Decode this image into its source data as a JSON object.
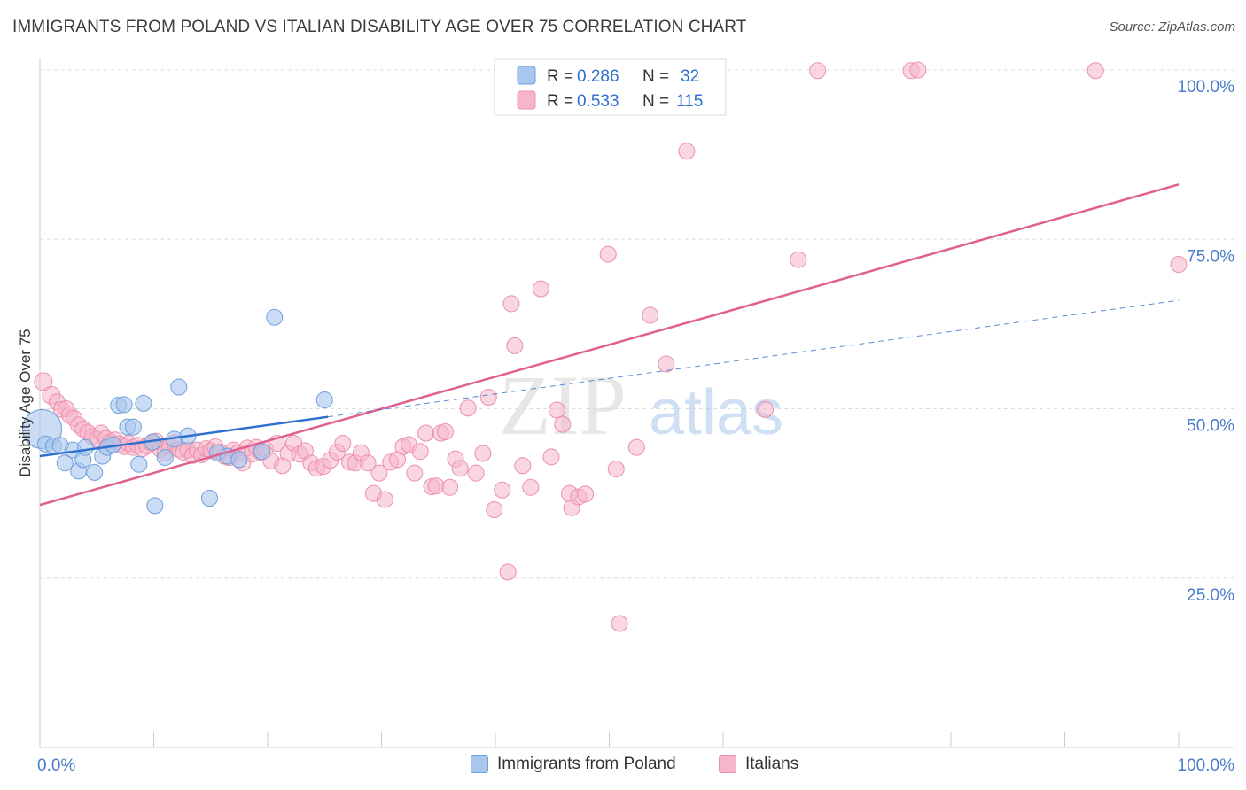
{
  "title": "IMMIGRANTS FROM POLAND VS ITALIAN DISABILITY AGE OVER 75 CORRELATION CHART",
  "source": "Source: ZipAtlas.com",
  "watermark": {
    "zip": "ZIP",
    "atlas": "atlas"
  },
  "colors": {
    "blue_fill": "#a9c7ee",
    "blue_stroke": "#6f9fdc",
    "blue_line": "#2f6fce",
    "pink_fill": "#f6b5c9",
    "pink_stroke": "#ec8fae",
    "pink_line": "#e0608e",
    "tick_label": "#4a7cc9",
    "grid": "#dddddd"
  },
  "legend_top": [
    {
      "r_label": "R =",
      "r_value": "0.286",
      "n_label": "N =",
      "n_value": "32"
    },
    {
      "r_label": "R =",
      "r_value": "0.533",
      "n_label": "N =",
      "n_value": "115"
    }
  ],
  "chart_data": {
    "type": "scatter",
    "title": "IMMIGRANTS FROM POLAND VS ITALIAN DISABILITY AGE OVER 75 CORRELATION CHART",
    "xlabel": "",
    "ylabel": "Disability Age Over 75",
    "xlim": [
      0,
      100
    ],
    "ylim": [
      0,
      102
    ],
    "x_tick_labels": [
      "0.0%",
      "100.0%"
    ],
    "y_tick_labels": [
      "100.0%",
      "75.0%",
      "50.0%",
      "25.0%"
    ],
    "y_tick_values": [
      100,
      75,
      50,
      25
    ],
    "legend": [
      "Immigrants from Poland",
      "Italians"
    ],
    "series": [
      {
        "name": "Immigrants from Poland",
        "r": 0.286,
        "n": 32,
        "trend_solid": {
          "x": [
            0,
            25.3
          ],
          "y": [
            43.0,
            48.8
          ]
        },
        "trend_dashed": {
          "x": [
            25.3,
            100
          ],
          "y": [
            48.8,
            66.0
          ]
        },
        "points": [
          [
            0.2,
            47.0,
            22
          ],
          [
            0.5,
            44.8,
            9
          ],
          [
            1.2,
            44.5,
            9
          ],
          [
            1.8,
            44.6,
            9
          ],
          [
            2.2,
            42.0,
            9
          ],
          [
            2.9,
            43.9,
            9
          ],
          [
            3.4,
            40.8,
            9
          ],
          [
            3.8,
            42.5,
            9
          ],
          [
            4.0,
            44.3,
            9
          ],
          [
            4.8,
            40.6,
            9
          ],
          [
            5.5,
            43.0,
            9
          ],
          [
            5.9,
            44.3,
            9
          ],
          [
            6.4,
            44.7,
            9
          ],
          [
            6.9,
            50.5,
            9
          ],
          [
            7.4,
            50.6,
            9
          ],
          [
            7.7,
            47.3,
            9
          ],
          [
            8.2,
            47.3,
            9
          ],
          [
            8.7,
            41.8,
            9
          ],
          [
            9.1,
            50.8,
            9
          ],
          [
            9.9,
            45.1,
            9
          ],
          [
            10.1,
            35.7,
            9
          ],
          [
            11.0,
            42.8,
            9
          ],
          [
            11.8,
            45.5,
            9
          ],
          [
            12.2,
            53.2,
            9
          ],
          [
            13.0,
            46.0,
            9
          ],
          [
            14.9,
            36.8,
            9
          ],
          [
            15.6,
            43.5,
            9
          ],
          [
            16.5,
            43.0,
            9
          ],
          [
            17.5,
            42.5,
            9
          ],
          [
            19.5,
            43.7,
            9
          ],
          [
            20.6,
            63.5,
            9
          ],
          [
            25.0,
            51.3,
            9
          ]
        ]
      },
      {
        "name": "Italians",
        "r": 0.533,
        "n": 115,
        "trend": {
          "x": [
            0,
            100
          ],
          "y": [
            35.8,
            83.1
          ]
        },
        "points": [
          [
            0.3,
            54.0,
            10
          ],
          [
            1.0,
            52.0,
            10
          ],
          [
            1.5,
            51.0,
            9
          ],
          [
            1.9,
            49.9,
            9
          ],
          [
            2.3,
            50.0,
            9
          ],
          [
            2.6,
            49.1,
            9
          ],
          [
            3.0,
            48.6,
            9
          ],
          [
            3.4,
            47.6,
            9
          ],
          [
            3.8,
            47.0,
            9
          ],
          [
            4.2,
            46.5,
            9
          ],
          [
            4.6,
            45.9,
            9
          ],
          [
            5.0,
            45.5,
            9
          ],
          [
            5.4,
            46.4,
            9
          ],
          [
            5.8,
            45.6,
            9
          ],
          [
            6.2,
            45.1,
            9
          ],
          [
            6.6,
            45.4,
            9
          ],
          [
            7.0,
            44.8,
            9
          ],
          [
            7.4,
            44.4,
            9
          ],
          [
            7.8,
            44.9,
            9
          ],
          [
            8.2,
            44.3,
            9
          ],
          [
            8.6,
            44.6,
            9
          ],
          [
            9.0,
            44.1,
            9
          ],
          [
            9.4,
            44.5,
            9
          ],
          [
            9.8,
            44.9,
            9
          ],
          [
            10.2,
            45.2,
            9
          ],
          [
            10.6,
            44.0,
            9
          ],
          [
            11.0,
            43.5,
            9
          ],
          [
            11.4,
            44.4,
            9
          ],
          [
            11.8,
            45.0,
            9
          ],
          [
            12.2,
            44.0,
            9
          ],
          [
            12.6,
            43.6,
            9
          ],
          [
            13.0,
            43.9,
            9
          ],
          [
            13.4,
            43.1,
            9
          ],
          [
            13.8,
            43.9,
            9
          ],
          [
            14.2,
            43.2,
            9
          ],
          [
            14.6,
            44.1,
            9
          ],
          [
            15.0,
            43.8,
            9
          ],
          [
            15.4,
            44.4,
            9
          ],
          [
            15.8,
            43.6,
            9
          ],
          [
            16.2,
            43.0,
            9
          ],
          [
            16.6,
            42.8,
            9
          ],
          [
            17.0,
            43.9,
            9
          ],
          [
            17.4,
            43.5,
            9
          ],
          [
            17.8,
            42.0,
            9
          ],
          [
            18.2,
            44.2,
            9
          ],
          [
            18.6,
            43.3,
            9
          ],
          [
            19.0,
            44.3,
            9
          ],
          [
            19.4,
            43.6,
            9
          ],
          [
            19.8,
            44.0,
            9
          ],
          [
            20.3,
            42.3,
            9
          ],
          [
            20.8,
            44.9,
            9
          ],
          [
            21.3,
            41.6,
            9
          ],
          [
            21.8,
            43.4,
            9
          ],
          [
            22.3,
            44.9,
            9
          ],
          [
            22.8,
            43.3,
            9
          ],
          [
            23.3,
            43.8,
            9
          ],
          [
            23.8,
            42.0,
            9
          ],
          [
            24.3,
            41.2,
            9
          ],
          [
            24.9,
            41.5,
            9
          ],
          [
            25.5,
            42.4,
            9
          ],
          [
            26.1,
            43.6,
            9
          ],
          [
            26.6,
            44.9,
            9
          ],
          [
            27.2,
            42.1,
            9
          ],
          [
            27.7,
            42.0,
            9
          ],
          [
            28.2,
            43.5,
            9
          ],
          [
            28.8,
            42.0,
            9
          ],
          [
            29.3,
            37.5,
            9
          ],
          [
            29.8,
            40.5,
            9
          ],
          [
            30.3,
            36.6,
            9
          ],
          [
            30.8,
            42.1,
            9
          ],
          [
            31.4,
            42.5,
            9
          ],
          [
            31.9,
            44.4,
            9
          ],
          [
            32.4,
            44.7,
            9
          ],
          [
            32.9,
            40.5,
            9
          ],
          [
            33.4,
            43.7,
            9
          ],
          [
            33.9,
            46.4,
            9
          ],
          [
            34.4,
            38.5,
            9
          ],
          [
            34.8,
            38.6,
            9
          ],
          [
            35.2,
            46.4,
            9
          ],
          [
            35.6,
            46.6,
            9
          ],
          [
            36.0,
            38.4,
            9
          ],
          [
            36.5,
            42.6,
            9
          ],
          [
            36.9,
            41.2,
            9
          ],
          [
            37.6,
            50.1,
            9
          ],
          [
            38.3,
            40.5,
            9
          ],
          [
            38.9,
            43.4,
            9
          ],
          [
            39.4,
            51.7,
            9
          ],
          [
            39.9,
            35.1,
            9
          ],
          [
            40.6,
            38.0,
            9
          ],
          [
            41.1,
            25.9,
            9
          ],
          [
            41.4,
            65.5,
            9
          ],
          [
            41.7,
            59.3,
            9
          ],
          [
            42.4,
            41.6,
            9
          ],
          [
            43.1,
            38.4,
            9
          ],
          [
            44.0,
            67.7,
            9
          ],
          [
            44.9,
            42.9,
            9
          ],
          [
            45.4,
            49.8,
            9
          ],
          [
            45.9,
            47.7,
            9
          ],
          [
            46.5,
            37.5,
            9
          ],
          [
            46.7,
            35.4,
            9
          ],
          [
            47.3,
            37.0,
            9
          ],
          [
            47.9,
            37.4,
            9
          ],
          [
            49.9,
            72.8,
            9
          ],
          [
            50.6,
            41.1,
            9
          ],
          [
            50.9,
            18.3,
            9
          ],
          [
            52.4,
            44.3,
            9
          ],
          [
            53.6,
            63.8,
            9
          ],
          [
            55.0,
            56.6,
            9
          ],
          [
            56.8,
            88.0,
            9
          ],
          [
            63.7,
            49.9,
            9
          ],
          [
            66.6,
            72.0,
            9
          ],
          [
            68.3,
            99.9,
            9
          ],
          [
            76.5,
            99.9,
            9
          ],
          [
            77.1,
            100.0,
            9
          ],
          [
            92.7,
            99.9,
            9
          ],
          [
            100.0,
            71.3,
            9
          ]
        ]
      }
    ]
  }
}
